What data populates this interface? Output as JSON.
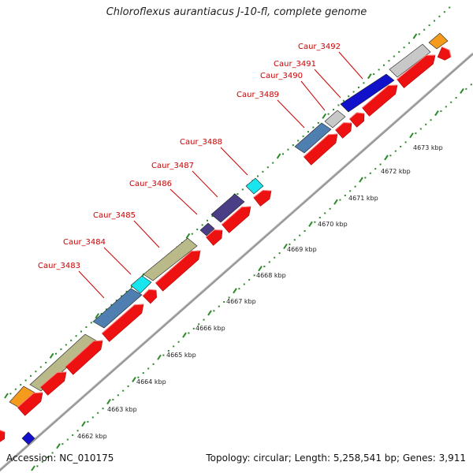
{
  "title": "Chloroflexus aurantiacus J-10-fl, complete genome",
  "accession": "Accession: NC_010175",
  "summary": "Topology: circular; Length: 5,258,541 bp; Genes: 3,911",
  "colors": {
    "backbone": "#9a9a9a",
    "tick": "#2a8a2a",
    "cds_strand": "#ee1111",
    "label": "#cc0000",
    "cog_orange": "#f49a1c",
    "cog_olive": "#b9b98a",
    "cog_steelblue": "#4f7fb0",
    "cog_cyan": "#19e5ee",
    "cog_purple": "#4a3f86",
    "cog_gray": "#c8c8c8",
    "cog_blue": "#1111cc"
  },
  "scale_labels": [
    "4662 kbp",
    "4663 kbp",
    "4664 kbp",
    "4665 kbp",
    "4666 kbp",
    "4667 kbp",
    "4668 kbp",
    "4669 kbp",
    "4670 kbp",
    "4671 kbp",
    "4672 kbp",
    "4673 kbp"
  ],
  "gene_labels": [
    "Caur_3483",
    "Caur_3484",
    "Caur_3485",
    "Caur_3486",
    "Caur_3487",
    "Caur_3488",
    "Caur_3489",
    "Caur_3490",
    "Caur_3491",
    "Caur_3492"
  ]
}
